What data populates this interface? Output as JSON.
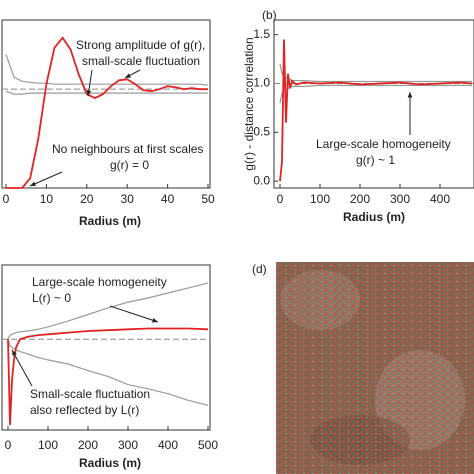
{
  "chart_data": [
    {
      "type": "line",
      "xlabel": "Radius (m)",
      "x": [
        0,
        2,
        4,
        6,
        8,
        10,
        12,
        14,
        16,
        18,
        20,
        22,
        24,
        26,
        28,
        30,
        32,
        34,
        36,
        38,
        40,
        42,
        44,
        46,
        48,
        50
      ],
      "xlim": [
        0,
        50
      ],
      "xticks": [
        0,
        10,
        20,
        30,
        40,
        50
      ],
      "ylim": [
        0,
        1.7
      ],
      "hline": 1,
      "series": [
        {
          "color": "#999999",
          "values": [
            1.35,
            1.12,
            1.08,
            1.07,
            1.06,
            1.06,
            1.05,
            1.05,
            1.05,
            1.05,
            1.05,
            1.05,
            1.05,
            1.05,
            1.05,
            1.05,
            1.05,
            1.05,
            1.05,
            1.05,
            1.05,
            1.05,
            1.05,
            1.05,
            1.05,
            1.04
          ]
        },
        {
          "color": "#999999",
          "values": [
            0.98,
            0.95,
            0.95,
            0.96,
            0.96,
            0.96,
            0.96,
            0.96,
            0.96,
            0.96,
            0.96,
            0.96,
            0.96,
            0.96,
            0.96,
            0.96,
            0.96,
            0.96,
            0.96,
            0.96,
            0.96,
            0.96,
            0.96,
            0.96,
            0.96,
            0.96
          ]
        },
        {
          "color": "#e02424",
          "values": [
            0,
            0,
            0,
            0.1,
            0.5,
            1.05,
            1.42,
            1.52,
            1.4,
            1.15,
            0.95,
            0.91,
            0.95,
            1.03,
            1.09,
            1.1,
            1.05,
            0.99,
            0.98,
            1.0,
            1.03,
            1.02,
            1.0,
            1.01,
            1.0,
            1.0
          ]
        }
      ],
      "annotations": [
        "Strong amplitude of g(r),",
        "small-scale fluctuation",
        "No neighbours at first scales",
        "g(r) = 0"
      ]
    },
    {
      "type": "line",
      "panel": "(b)",
      "xlabel": "Radius (m)",
      "ylabel": "g(r) - distance correlation",
      "x": [
        0,
        5,
        10,
        15,
        20,
        25,
        30,
        40,
        60,
        100,
        150,
        200,
        250,
        300,
        350,
        400,
        450,
        480
      ],
      "xlim": [
        0,
        480
      ],
      "xticks": [
        0,
        100,
        200,
        300,
        400
      ],
      "ylim": [
        -0.07,
        1.65
      ],
      "yticks": [
        0.0,
        0.5,
        1.0,
        1.5
      ],
      "hline": 1,
      "series": [
        {
          "color": "#999999",
          "values": [
            1.2,
            1.1,
            1.07,
            1.06,
            1.05,
            1.04,
            1.03,
            1.03,
            1.03,
            1.02,
            1.02,
            1.02,
            1.02,
            1.02,
            1.02,
            1.02,
            1.02,
            1.02
          ]
        },
        {
          "color": "#999999",
          "values": [
            0.8,
            0.9,
            0.93,
            0.94,
            0.95,
            0.96,
            0.97,
            0.97,
            0.97,
            0.98,
            0.98,
            0.98,
            0.98,
            0.98,
            0.98,
            0.98,
            0.98,
            0.98
          ]
        },
        {
          "color": "#e02424",
          "values": [
            0,
            0.2,
            1.45,
            0.6,
            1.1,
            0.95,
            1.03,
            0.99,
            1.01,
            1.0,
            1.01,
            0.99,
            1.0,
            1.01,
            0.99,
            1.0,
            1.01,
            1.0
          ]
        }
      ],
      "annotations": [
        "Large-scale homogeneity",
        "g(r) ~ 1"
      ]
    },
    {
      "type": "line",
      "xlabel": "Radius (m)",
      "x": [
        0,
        5,
        10,
        15,
        20,
        30,
        50,
        75,
        100,
        150,
        200,
        250,
        300,
        350,
        400,
        450,
        500
      ],
      "xlim": [
        0,
        500
      ],
      "xticks": [
        0,
        100,
        200,
        300,
        400,
        500
      ],
      "ylim": [
        -1.1,
        0.9
      ],
      "hline": 0,
      "series": [
        {
          "color": "#999999",
          "values": [
            0,
            0.05,
            0.06,
            0.07,
            0.08,
            0.09,
            0.1,
            0.12,
            0.15,
            0.22,
            0.3,
            0.38,
            0.45,
            0.5,
            0.56,
            0.62,
            0.68
          ]
        },
        {
          "color": "#999999",
          "values": [
            0,
            -0.08,
            -0.1,
            -0.12,
            -0.13,
            -0.15,
            -0.18,
            -0.22,
            -0.25,
            -0.3,
            -0.38,
            -0.45,
            -0.55,
            -0.6,
            -0.66,
            -0.74,
            -0.8
          ]
        },
        {
          "color": "#e02424",
          "values": [
            0,
            -1.04,
            -0.5,
            -0.25,
            -0.1,
            0,
            0.03,
            0.05,
            0.06,
            0.08,
            0.1,
            0.11,
            0.12,
            0.13,
            0.13,
            0.13,
            0.12
          ]
        }
      ],
      "annotations": [
        "Large-scale homogeneity",
        "L(r) ~ 0",
        "Small-scale fluctuation",
        "also reflected by L(r)"
      ]
    }
  ],
  "photo": {
    "label": "(d)"
  }
}
